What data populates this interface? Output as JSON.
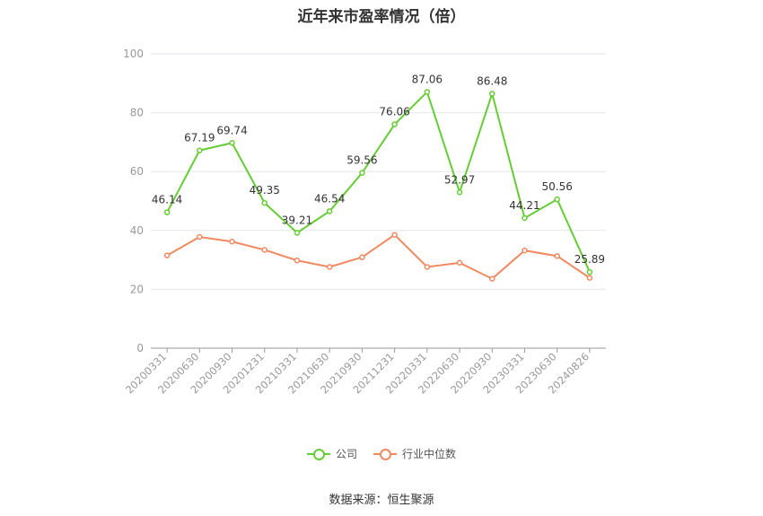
{
  "colors": {
    "company": "#66cc33",
    "industry": "#f08860",
    "grid": "#e5e5ec",
    "axis": "#999999",
    "tick_text": "#999999"
  },
  "footer": {
    "source": "数据来源：恒生聚源"
  },
  "chart_data": {
    "type": "line",
    "title": "近年来市盈率情况（倍）",
    "xlabel": "",
    "ylabel": "",
    "ylim": [
      0,
      100
    ],
    "yticks": [
      0,
      20,
      40,
      60,
      80,
      100
    ],
    "grid": true,
    "legend_position": "bottom-center",
    "categories": [
      "20200331",
      "20200630",
      "20200930",
      "20201231",
      "20210331",
      "20210630",
      "20210930",
      "20211231",
      "20220331",
      "20220630",
      "20220930",
      "20230331",
      "20230630",
      "20240826"
    ],
    "series": [
      {
        "name": "公司",
        "color_key": "company",
        "show_labels": true,
        "values": [
          46.14,
          67.19,
          69.74,
          49.35,
          39.21,
          46.54,
          59.56,
          76.06,
          87.06,
          52.97,
          86.48,
          44.21,
          50.56,
          25.89
        ]
      },
      {
        "name": "行业中位数",
        "color_key": "industry",
        "show_labels": false,
        "values": [
          31.5,
          37.8,
          36.2,
          33.4,
          29.8,
          27.6,
          30.9,
          38.5,
          27.6,
          29.0,
          23.6,
          33.2,
          31.3,
          23.9
        ]
      }
    ]
  }
}
